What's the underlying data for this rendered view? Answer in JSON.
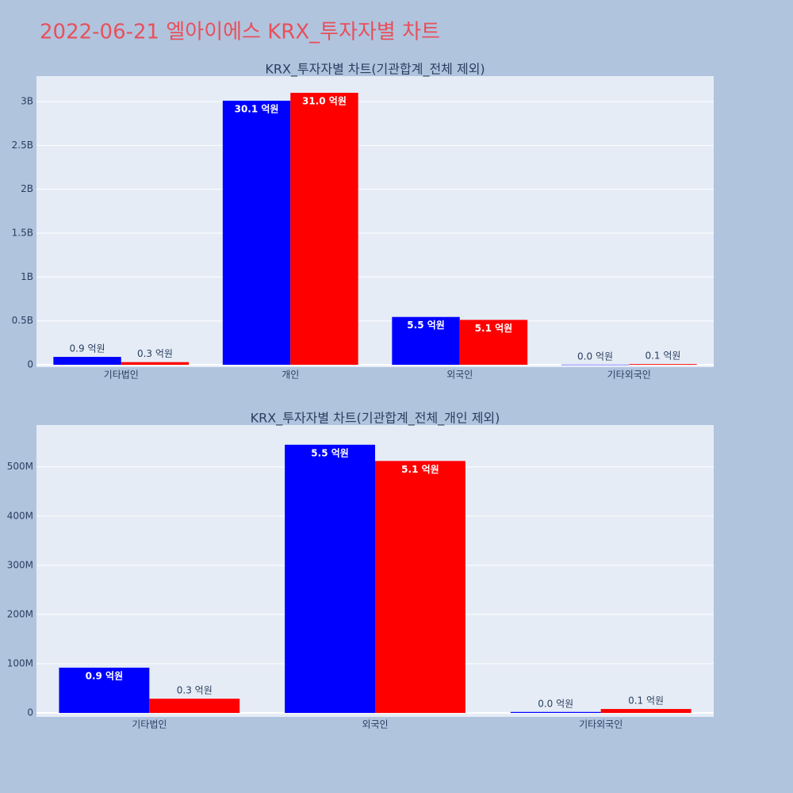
{
  "title": "2022-06-21 엘아이에스 KRX_투자자별 차트",
  "chart_data": [
    {
      "type": "bar",
      "title": "KRX_투자자별 차트(기관합계_전체 제외)",
      "categories": [
        "기타법인",
        "개인",
        "외국인",
        "기타외국인"
      ],
      "series": [
        {
          "color": "#0000ff",
          "values": [
            90000000,
            3010000000,
            545000000,
            2000000
          ],
          "value_labels": [
            "0.9 억원",
            "30.1 억원",
            "5.5 억원",
            "0.0 억원"
          ]
        },
        {
          "color": "#ff0000",
          "values": [
            30000000,
            3100000000,
            512000000,
            8000000
          ],
          "value_labels": [
            "0.3 억원",
            "31.0 억원",
            "5.1 억원",
            "0.1 억원"
          ]
        }
      ],
      "ylim": [
        -27000000,
        3290000000
      ],
      "yticks": [
        0,
        {
          "value": 500000000,
          "label": "0.5B"
        },
        {
          "value": 1000000000,
          "label": "1B"
        },
        {
          "value": 1500000000,
          "label": "1.5B"
        },
        {
          "value": 2000000000,
          "label": "2B"
        },
        {
          "value": 2500000000,
          "label": "2.5B"
        },
        {
          "value": 3000000000,
          "label": "3B"
        }
      ],
      "grid": true
    },
    {
      "type": "bar",
      "title": "KRX_투자자별 차트(기관합계_전체_개인 제외)",
      "categories": [
        "기타법인",
        "외국인",
        "기타외국인"
      ],
      "series": [
        {
          "color": "#0000ff",
          "values": [
            92000000,
            545000000,
            2000000
          ],
          "value_labels": [
            "0.9 억원",
            "5.5 억원",
            "0.0 억원"
          ]
        },
        {
          "color": "#ff0000",
          "values": [
            29000000,
            512000000,
            8000000
          ],
          "value_labels": [
            "0.3 억원",
            "5.1 억원",
            "0.1 억원"
          ]
        }
      ],
      "ylim": [
        -8000000,
        585000000
      ],
      "yticks": [
        0,
        {
          "value": 100000000,
          "label": "100M"
        },
        {
          "value": 200000000,
          "label": "200M"
        },
        {
          "value": 300000000,
          "label": "300M"
        },
        {
          "value": 400000000,
          "label": "400M"
        },
        {
          "value": 500000000,
          "label": "500M"
        }
      ],
      "grid": true
    }
  ]
}
